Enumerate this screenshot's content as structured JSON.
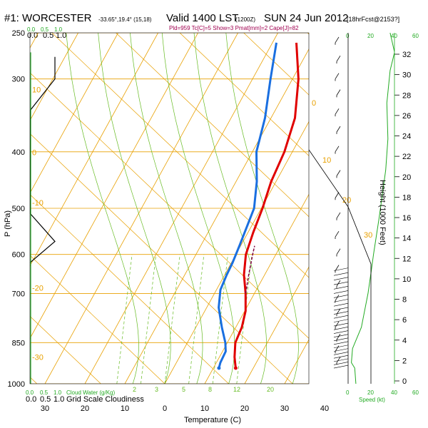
{
  "header": {
    "station": "#1: WORCESTER",
    "coords": "-33.65°,19.4° (15,18)",
    "valid": "Valid 1400 LST",
    "utc": "(1200Z)",
    "date": "SUN 24 Jun 2012",
    "forecast": "[18hrFcst@2153?]",
    "indices": "Pld=959 Tc[C]=5 Show=3 Pmat[mm]=2 Cape[J]=82"
  },
  "labels": {
    "xlabel": "Temperature (C)",
    "ylabel": "P (hPa)",
    "height_label": "Height (1000 Feet)",
    "speed_label": "Speed (kt)",
    "cloudwater_label": "Cloud Water (g/Kg)",
    "cloudiness_label": "Grid Scale Cloudiness",
    "top_scale": [
      "0.0",
      "0.5",
      "1.0"
    ],
    "bottom_scale": [
      "0.0",
      "0.5",
      "1.0"
    ],
    "speed_ticks": [
      "0",
      "20",
      "40",
      "60"
    ]
  },
  "mixing_ratio_labels": [
    "2",
    "3",
    "5",
    "8",
    "12",
    "20"
  ],
  "dry_adiabat_labels": [
    "0",
    "10",
    "20",
    "30"
  ],
  "isotherm_labels": [
    "10",
    "0",
    "-10",
    "-20",
    "-30"
  ],
  "colors": {
    "isotherm": "#e8a000",
    "mixing_ratio": "#66bb22",
    "temperature": "#e00000",
    "dewpoint": "#1a6fe0",
    "parcel": "#800040",
    "green_text": "#22aa22",
    "magenta_text": "#a00050"
  },
  "chart_data": {
    "type": "line",
    "title": "#1: WORCESTER  Valid 1400 LST SUN 24 Jun 2012",
    "xlabel": "Temperature (C)",
    "ylabel": "P (hPa)",
    "xlim": [
      -35,
      45
    ],
    "ylim": [
      1000,
      250
    ],
    "x_ticks": [
      "30",
      "20",
      "10",
      "0",
      "10",
      "20",
      "30",
      "40"
    ],
    "pressure_ticks": [
      "250",
      "300",
      "400",
      "500",
      "600",
      "700",
      "850",
      "1000"
    ],
    "height_ticks": [
      "0",
      "2",
      "4",
      "6",
      "8",
      "10",
      "12",
      "14",
      "16",
      "18",
      "20",
      "22",
      "24",
      "26",
      "28",
      "30",
      "32"
    ],
    "series": [
      {
        "name": "Temperature",
        "points": [
          [
            15.6,
            940
          ],
          [
            13.8,
            900
          ],
          [
            12,
            850
          ],
          [
            11.5,
            800
          ],
          [
            10.2,
            750
          ],
          [
            7.8,
            700
          ],
          [
            4.8,
            650
          ],
          [
            2.5,
            600
          ],
          [
            1.3,
            550
          ],
          [
            0.3,
            500
          ],
          [
            -1.2,
            450
          ],
          [
            -2,
            400
          ],
          [
            -4,
            350
          ],
          [
            -8.5,
            300
          ],
          [
            -14,
            260
          ]
        ]
      },
      {
        "name": "Dewpoint",
        "points": [
          [
            11.4,
            940
          ],
          [
            11,
            920
          ],
          [
            10.8,
            880
          ],
          [
            9.5,
            850
          ],
          [
            6.5,
            800
          ],
          [
            3,
            740
          ],
          [
            1,
            690
          ],
          [
            0.5,
            650
          ],
          [
            0.3,
            620
          ],
          [
            -0.3,
            580
          ],
          [
            -1.8,
            500
          ],
          [
            -4.8,
            450
          ],
          [
            -9,
            400
          ],
          [
            -11.5,
            350
          ],
          [
            -15.5,
            300
          ],
          [
            -19,
            260
          ]
        ]
      },
      {
        "name": "Parcel",
        "points": [
          [
            7.8,
            700
          ],
          [
            6,
            650
          ],
          [
            4.2,
            600
          ],
          [
            3.5,
            580
          ]
        ]
      }
    ],
    "cloud_profile": [
      [
        0.35,
        275
      ],
      [
        0.35,
        300
      ],
      [
        0,
        340
      ],
      [
        0,
        510
      ],
      [
        0.35,
        570
      ],
      [
        0,
        620
      ]
    ],
    "wind_speed_profile": [
      [
        38,
        250
      ],
      [
        42,
        270
      ],
      [
        38,
        290
      ],
      [
        35,
        330
      ],
      [
        36,
        380
      ],
      [
        34,
        430
      ],
      [
        28,
        520
      ],
      [
        23,
        600
      ],
      [
        21,
        640
      ],
      [
        18,
        700
      ],
      [
        12,
        800
      ],
      [
        4,
        870
      ],
      [
        3,
        920
      ],
      [
        6,
        940
      ],
      [
        7,
        1000
      ]
    ]
  }
}
